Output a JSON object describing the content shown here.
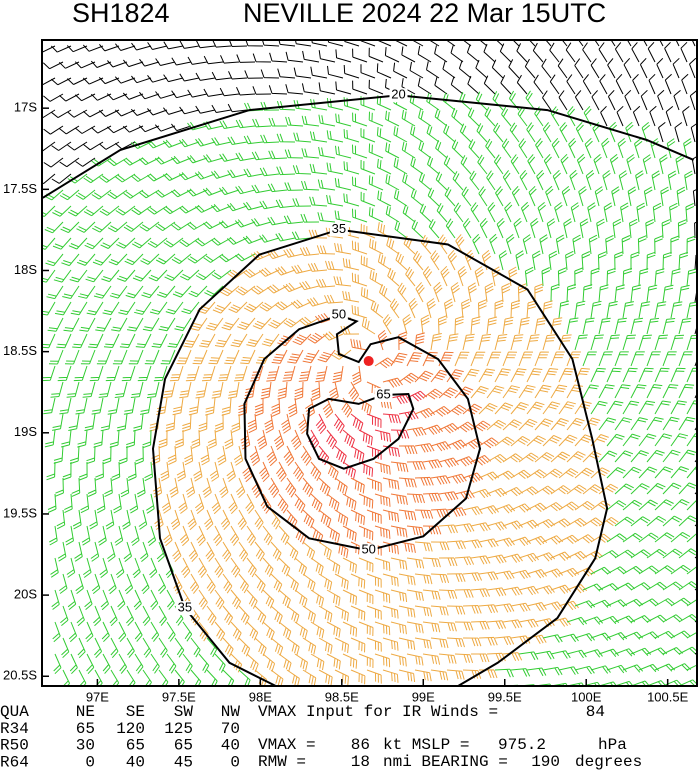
{
  "header": {
    "storm_id": "SH1824",
    "title": "NEVILLE 2024 22 Mar 15UTC"
  },
  "map": {
    "xlim": [
      96.66,
      100.68
    ],
    "ylim": [
      -20.56,
      -16.58
    ],
    "xticks": [
      {
        "value": 97,
        "label": "97E"
      },
      {
        "value": 97.5,
        "label": "97.5E"
      },
      {
        "value": 98,
        "label": "98E"
      },
      {
        "value": 98.5,
        "label": "98.5E"
      },
      {
        "value": 99,
        "label": "99E"
      },
      {
        "value": 99.5,
        "label": "99.5E"
      },
      {
        "value": 100,
        "label": "100E"
      },
      {
        "value": 100.5,
        "label": "100.5E"
      }
    ],
    "yticks": [
      {
        "value": -17,
        "label": "17S"
      },
      {
        "value": -17.5,
        "label": "17.5S"
      },
      {
        "value": -18,
        "label": "18S"
      },
      {
        "value": -18.5,
        "label": "18.5S"
      },
      {
        "value": -19,
        "label": "19S"
      },
      {
        "value": -19.5,
        "label": "19.5S"
      },
      {
        "value": -20,
        "label": "20S"
      },
      {
        "value": -20.5,
        "label": "20.5S"
      }
    ],
    "outer_barb_color": "#000000",
    "center": {
      "lon": 98.665,
      "lat": -18.558,
      "color": "#ee2222"
    },
    "contours": [
      {
        "label": 20,
        "closed": false,
        "barb_color": "#33cc33",
        "lon": [
          96.665,
          97.14,
          97.933,
          98.848,
          99.762,
          100.372,
          100.659
        ],
        "lat": [
          -17.552,
          -17.258,
          -17.012,
          -16.92,
          -17.012,
          -17.196,
          -17.319
        ]
      },
      {
        "label": 35,
        "closed": true,
        "barb_color": "#eeaa44",
        "lon": [
          98.482,
          99.152,
          99.64,
          99.915,
          100.037,
          100.128,
          100.055,
          99.823,
          99.457,
          99.091,
          98.238,
          97.811,
          97.537,
          97.384,
          97.341,
          97.415,
          97.628,
          97.994
        ],
        "lat": [
          -17.748,
          -17.84,
          -18.117,
          -18.546,
          -19.037,
          -19.466,
          -19.773,
          -20.141,
          -20.417,
          -20.632,
          -20.632,
          -20.417,
          -20.08,
          -19.65,
          -19.098,
          -18.669,
          -18.239,
          -17.902
        ]
      },
      {
        "label": 50,
        "closed": true,
        "barb_color": "#f07838",
        "lon": [
          98.482,
          98.591,
          98.47,
          98.482,
          98.604,
          98.677,
          98.848,
          99.091,
          99.274,
          99.348,
          99.262,
          99.0,
          98.665,
          98.299,
          98.043,
          97.909,
          97.902,
          98.024,
          98.238
        ],
        "lat": [
          -18.276,
          -18.313,
          -18.393,
          -18.515,
          -18.564,
          -18.454,
          -18.411,
          -18.546,
          -18.791,
          -19.098,
          -19.405,
          -19.638,
          -19.724,
          -19.65,
          -19.454,
          -19.16,
          -18.822,
          -18.546,
          -18.362
        ]
      },
      {
        "label": 65,
        "closed": true,
        "barb_color": "#ee3344",
        "lon": [
          98.756,
          98.909,
          98.939,
          98.848,
          98.695,
          98.512,
          98.36,
          98.287,
          98.299,
          98.421,
          98.604
        ],
        "lat": [
          -18.767,
          -18.761,
          -18.853,
          -19.037,
          -19.16,
          -19.221,
          -19.16,
          -19.006,
          -18.853,
          -18.791,
          -18.822
        ]
      }
    ]
  },
  "table": {
    "rows": [
      [
        "QUA",
        "NE",
        "SE",
        "SW",
        "NW"
      ],
      [
        "R34",
        65,
        120,
        125,
        70
      ],
      [
        "R50",
        30,
        65,
        65,
        40
      ],
      [
        "R64",
        0,
        40,
        45,
        0
      ]
    ],
    "ir_label": "VMAX Input for IR Winds =",
    "ir_vmax": 84,
    "vmax_label": "VMAX =",
    "vmax": 86,
    "vmax_unit": "kt MSLP =",
    "mslp": 975.2,
    "mslp_unit": "hPa",
    "rmw_label": "RMW =",
    "rmw": 18,
    "rmw_unit": "nmi BEARING =",
    "bearing": 190,
    "bearing_unit": "degrees"
  }
}
